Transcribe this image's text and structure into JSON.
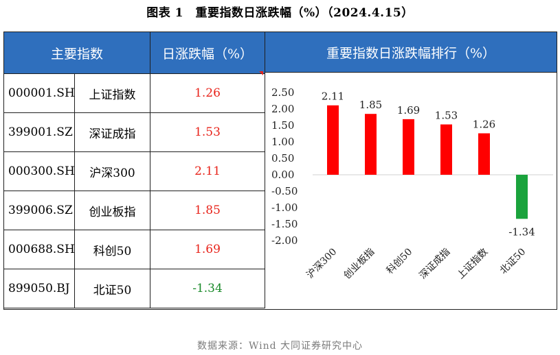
{
  "figure_title": "图表 1　重要指数日涨跌幅（%）（2024.4.15）",
  "table": {
    "header_name": "主要指数",
    "header_change": "日涨跌幅（%）",
    "rows": [
      {
        "code": "000001.SH",
        "name": "上证指数",
        "change": "1.26"
      },
      {
        "code": "399001.SZ",
        "name": "深证成指",
        "change": "1.53"
      },
      {
        "code": "000300.SH",
        "name": "沪深300",
        "change": "2.11"
      },
      {
        "code": "399006.SZ",
        "name": "创业板指",
        "change": "1.85"
      },
      {
        "code": "000688.SH",
        "name": "科创50",
        "change": "1.69"
      },
      {
        "code": "899050.BJ",
        "name": "北证50",
        "change": "-1.34"
      }
    ]
  },
  "chart_header": "重要指数日涨跌幅排行（%）",
  "chart_data": {
    "type": "bar",
    "categories": [
      "沪深300",
      "创业板指",
      "科创50",
      "深证成指",
      "上证指数",
      "北证50"
    ],
    "values": [
      2.11,
      1.85,
      1.69,
      1.53,
      1.26,
      -1.34
    ],
    "value_labels": [
      "2.11",
      "1.85",
      "1.69",
      "1.53",
      "1.26",
      "-1.34"
    ],
    "ylim": [
      -2.0,
      2.5
    ],
    "yticks": [
      "2.50",
      "2.00",
      "1.50",
      "1.00",
      "0.50",
      "0.00",
      "-0.50",
      "-1.00",
      "-1.50",
      "-2.00"
    ],
    "ytick_values": [
      2.5,
      2.0,
      1.5,
      1.0,
      0.5,
      0.0,
      -0.5,
      -1.0,
      -1.5,
      -2.0
    ],
    "grid": false,
    "legend": "none",
    "colors": {
      "positive": "#ff0000",
      "negative": "#1aa33c"
    }
  },
  "colors": {
    "header_bg": "#2f6fbd",
    "positive_text": "#e8231a",
    "negative_text": "#1a8a2a"
  },
  "source": "数据来源：Wind 大同证券研究中心"
}
